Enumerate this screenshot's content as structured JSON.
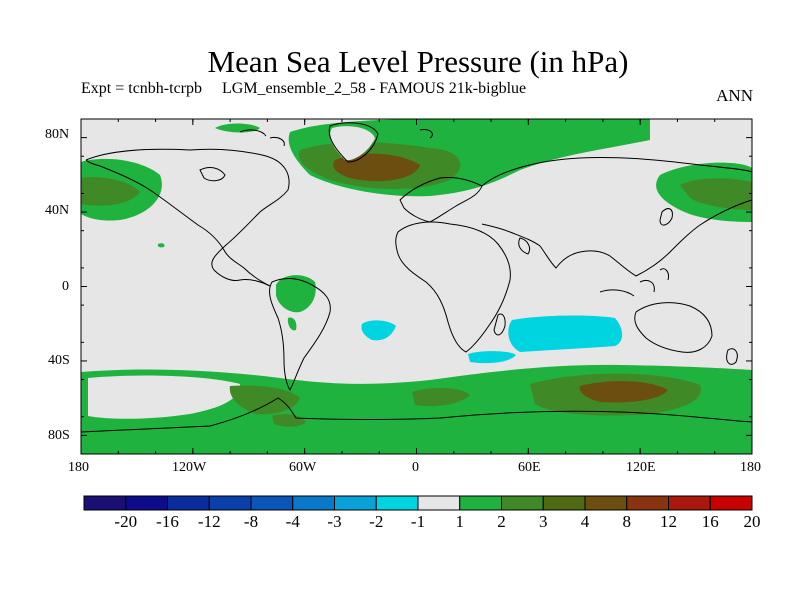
{
  "title": "Mean Sea Level Pressure (in hPa)",
  "subtitle_left": "Expt = tcnbh-tcrpb     LGM_ensemble_2_58 - FAMOUS 21k-bigblue",
  "subtitle_right": "ANN",
  "y_ticks": [
    "80N",
    "40N",
    "0",
    "40S",
    "80S"
  ],
  "x_ticks": [
    "180",
    "120W",
    "60W",
    "0",
    "60E",
    "120E",
    "180"
  ],
  "colorbar": {
    "labels": [
      "-20",
      "-16",
      "-12",
      "-8",
      "-4",
      "-3",
      "-2",
      "-1",
      "1",
      "2",
      "3",
      "4",
      "8",
      "12",
      "16",
      "20"
    ],
    "colors": [
      "#1a0f73",
      "#0c0c8c",
      "#0b2c9c",
      "#0a40aa",
      "#0b55b8",
      "#0a78c8",
      "#0aa0d8",
      "#00d4e0",
      "#e6e6e6",
      "#1fb23e",
      "#3f8a26",
      "#4f6a12",
      "#6b4e10",
      "#8a3310",
      "#a8180c",
      "#c80000"
    ]
  },
  "map_colors": {
    "background": "#e6e6e6",
    "green": "#1fb23e",
    "olive": "#3f8a26",
    "brown": "#6b4e10",
    "cyan": "#00d4e0",
    "coast": "#000000"
  }
}
